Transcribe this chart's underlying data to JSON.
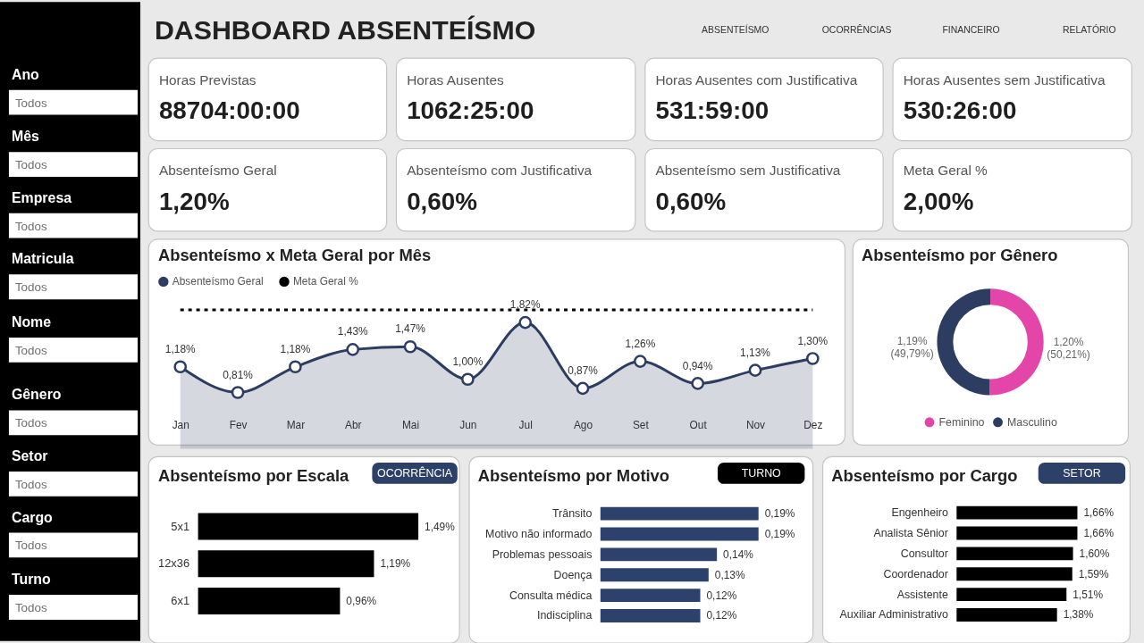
{
  "chart_data": [
    {
      "type": "other",
      "annotations": [
        "Ano",
        "Todos",
        "Mês",
        "Todos",
        "Empresa",
        "Todos",
        "Matricula",
        "Todos",
        "Nome",
        "Todos",
        "Gênero",
        "Todos",
        "Setor",
        "Todos",
        "Cargo",
        "Todos",
        "Turno",
        "Todos"
      ]
    },
    {
      "type": "other",
      "title": "DASHBOARD ABSENTEÍSMO",
      "annotations": [
        "ABSENTEÍSMO",
        "OCORRÊNCIAS",
        "FINANCEIRO",
        "RELATÓRIO"
      ]
    },
    {
      "type": "other",
      "title": "Horas Previstas",
      "annotations": [
        "88704:00:00"
      ]
    },
    {
      "type": "other",
      "title": "Horas Ausentes",
      "annotations": [
        "1062:25:00"
      ]
    },
    {
      "type": "other",
      "title": "Horas Ausentes com Justificativa",
      "annotations": [
        "531:59:00"
      ]
    },
    {
      "type": "other",
      "title": "Horas Ausentes sem Justificativa",
      "annotations": [
        "530:26:00"
      ]
    },
    {
      "type": "other",
      "title": "Absenteísmo Geral",
      "annotations": [
        "1,20%"
      ]
    },
    {
      "type": "other",
      "title": "Absenteísmo com Justificativa",
      "annotations": [
        "0,60%"
      ]
    },
    {
      "type": "other",
      "title": "Absenteísmo sem Justificativa",
      "annotations": [
        "0,60%"
      ]
    },
    {
      "type": "other",
      "title": "Meta Geral %",
      "annotations": [
        "2,00%"
      ]
    },
    {
      "type": "area",
      "title": "Absenteísmo x Meta Geral por Mês",
      "categories": [
        "Jan",
        "Fev",
        "Mar",
        "Abr",
        "Mai",
        "Jun",
        "Jul",
        "Ago",
        "Set",
        "Out",
        "Nov",
        "Dez"
      ],
      "series": [
        {
          "name": "Absenteísmo Geral",
          "color": "#2c3d61",
          "values": [
            1.18,
            0.81,
            1.18,
            1.43,
            1.47,
            1.0,
            1.82,
            0.87,
            1.26,
            0.94,
            1.13,
            1.3
          ],
          "value_labels": [
            "1,18%",
            "0,81%",
            "1,18%",
            "1,43%",
            "1,47%",
            "1,00%",
            "1,82%",
            "0,87%",
            "1,26%",
            "0,94%",
            "1,13%",
            "1,30%"
          ]
        },
        {
          "name": "Meta Geral %",
          "type": "line",
          "color": "#000000",
          "values": [
            2.0,
            2.0,
            2.0,
            2.0,
            2.0,
            2.0,
            2.0,
            2.0,
            2.0,
            2.0,
            2.0,
            2.0
          ],
          "line_style": "dotted",
          "marker": "none"
        }
      ],
      "marker": "circle",
      "tick_labels": "x",
      "legend": "top left"
    },
    {
      "type": "donut",
      "title": "Absenteísmo por Gênero",
      "categories": [
        "Feminino",
        "Masculino"
      ],
      "values": [
        1.2,
        1.19
      ],
      "colors": [
        "#e346a8",
        "#2c3d61"
      ],
      "value_labels": [
        "1,20%\n(50,21%)",
        "1,19%\n(49,79%)"
      ],
      "legend": "bottom"
    },
    {
      "type": "bar",
      "orientation": "horizontal",
      "title": "Absenteísmo por Escala",
      "categories": [
        "5x1",
        "12x36",
        "6x1"
      ],
      "values": [
        1.49,
        1.19,
        0.96
      ],
      "color": "#000000",
      "value_labels": [
        "1,49%",
        "1,19%",
        "0,96%"
      ],
      "annotations": [
        "OCORRÊNCIA"
      ],
      "tick_labels": "y"
    },
    {
      "type": "bar",
      "orientation": "horizontal",
      "title": "Absenteísmo por Motivo",
      "categories": [
        "Trânsito",
        "Motivo não informado",
        "Problemas pessoais",
        "Doença",
        "Consulta médica",
        "Indisciplina"
      ],
      "values": [
        0.19,
        0.19,
        0.14,
        0.13,
        0.12,
        0.12
      ],
      "color": "#2c416b",
      "value_labels": [
        "0,19%",
        "0,19%",
        "0,14%",
        "0,13%",
        "0,12%",
        "0,12%"
      ],
      "annotations": [
        "TURNO"
      ],
      "tick_labels": "y"
    },
    {
      "type": "bar",
      "orientation": "horizontal",
      "title": "Absenteísmo por Cargo",
      "categories": [
        "Engenheiro",
        "Analista Sênior",
        "Consultor",
        "Coordenador",
        "Assistente",
        "Auxiliar Administrativo"
      ],
      "values": [
        1.66,
        1.66,
        1.6,
        1.59,
        1.51,
        1.38
      ],
      "color": "#000000",
      "value_labels": [
        "1,66%",
        "1,66%",
        "1,60%",
        "1,59%",
        "1,51%",
        "1,38%"
      ],
      "annotations": [
        "SETOR"
      ],
      "tick_labels": "y"
    }
  ]
}
